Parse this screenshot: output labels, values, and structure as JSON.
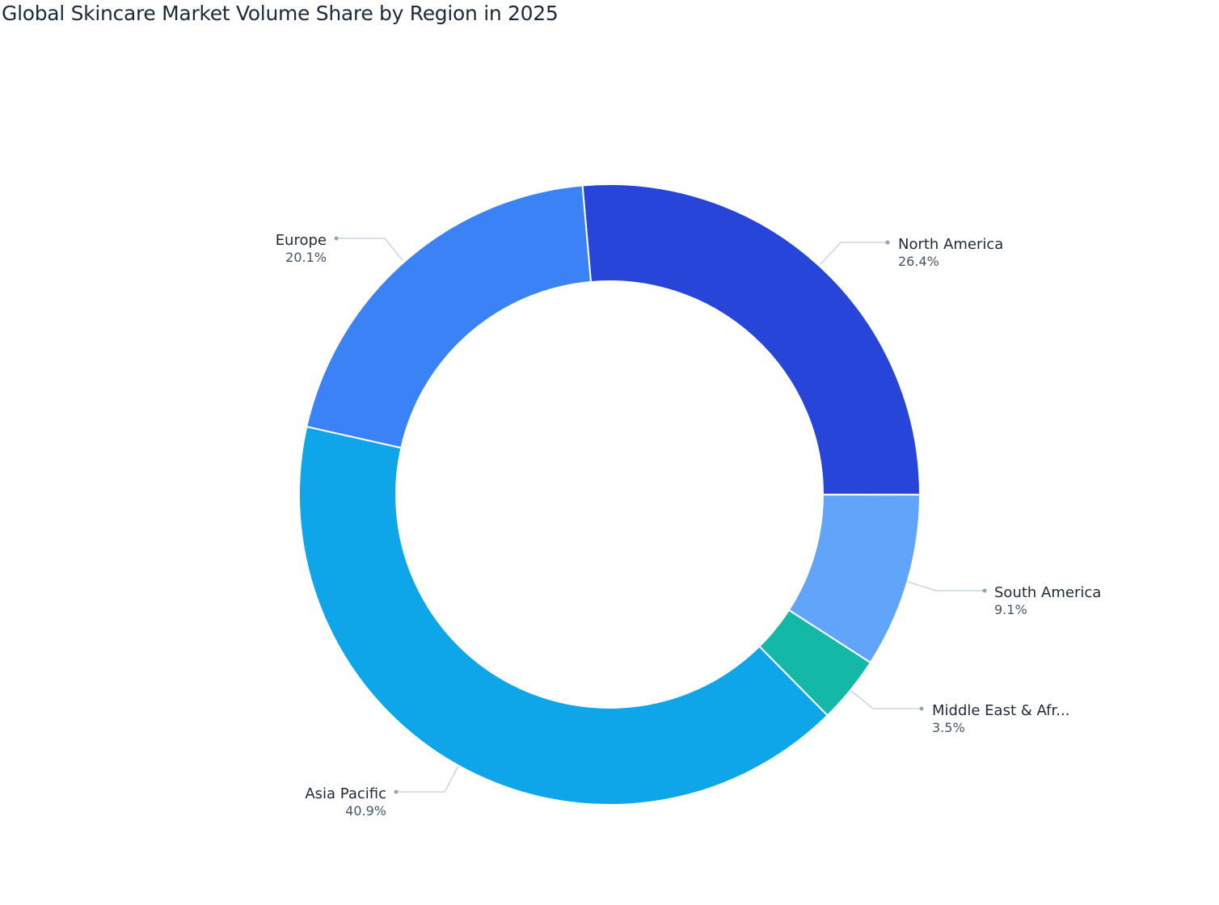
{
  "chart_data": {
    "type": "pie",
    "variant": "donut",
    "title": "Global Skincare Market Volume Share by Region in 2025",
    "unit": "%",
    "slices": [
      {
        "label": "North America",
        "display_label": "North America",
        "value": 26.4,
        "value_label": "26.4%",
        "color": "#2845d9"
      },
      {
        "label": "South America",
        "display_label": "South America",
        "value": 9.1,
        "value_label": "9.1%",
        "color": "#60a5fa"
      },
      {
        "label": "Middle East & Africa",
        "display_label": "Middle East & Afr...",
        "value": 3.5,
        "value_label": "3.5%",
        "color": "#14b8a6"
      },
      {
        "label": "Asia Pacific",
        "display_label": "Asia Pacific",
        "value": 40.9,
        "value_label": "40.9%",
        "color": "#0ea5e9"
      },
      {
        "label": "Europe",
        "display_label": "Europe",
        "value": 20.1,
        "value_label": "20.1%",
        "color": "#3b82f6"
      }
    ],
    "legend": "none (outside leader-line labels)"
  }
}
